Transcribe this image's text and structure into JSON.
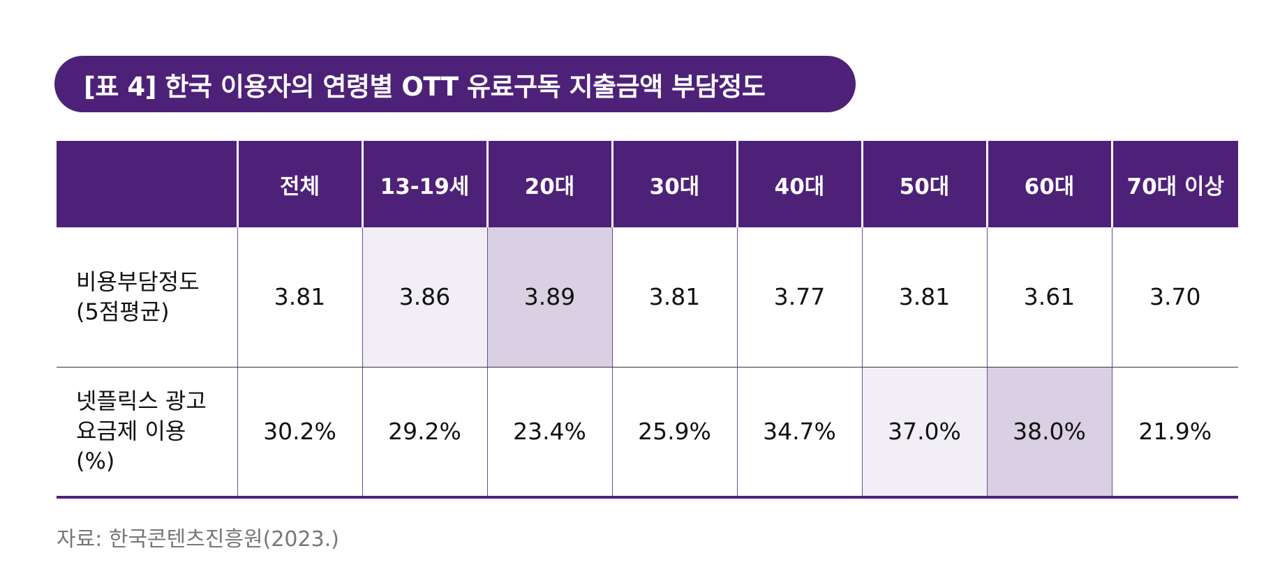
{
  "title": "[표 4] 한국 이용자의 연령별 OTT 유료구독 지출금액 부담정도",
  "table": {
    "columns": [
      "전체",
      "13-19세",
      "20대",
      "30대",
      "40대",
      "50대",
      "60대",
      "70대 이상"
    ],
    "rows": [
      {
        "label_lines": [
          "비용부담정도",
          "(5점평균)"
        ],
        "values": [
          "3.81",
          "3.86",
          "3.89",
          "3.81",
          "3.77",
          "3.81",
          "3.61",
          "3.70"
        ]
      },
      {
        "label_lines": [
          "넷플릭스 광고",
          "요금제 이용",
          "(%)"
        ],
        "values": [
          "30.2%",
          "29.2%",
          "23.4%",
          "25.9%",
          "34.7%",
          "37.0%",
          "38.0%",
          "21.9%"
        ]
      }
    ]
  },
  "source": "자료: 한국콘텐츠진흥원(2023.)",
  "colors": {
    "header_bg": "#4e2179",
    "highlight_light": "#f1eef5",
    "highlight_mid": "#d9d0e3"
  }
}
